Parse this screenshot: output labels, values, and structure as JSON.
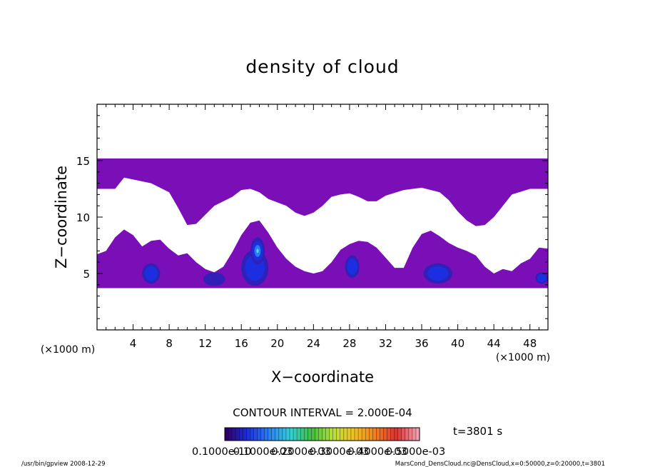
{
  "chart_data": {
    "type": "heatmap",
    "title": "density of cloud",
    "xlabel": "X−coordinate",
    "ylabel": "Z−coordinate",
    "x_unit": "(×1000 m)",
    "y_unit": "(×1000 m)",
    "xlim": [
      0,
      50
    ],
    "ylim": [
      0,
      20
    ],
    "x_ticks": [
      "4",
      "8",
      "12",
      "16",
      "20",
      "24",
      "28",
      "32",
      "36",
      "40",
      "44",
      "48"
    ],
    "y_ticks": [
      "5",
      "10",
      "15"
    ],
    "contour_interval": "CONTOUR INTERVAL = 2.000E-04",
    "time_label": "t=3801 s",
    "colorbar_labels": [
      "0.1000e-10",
      "0.1000e-03",
      "0.2000e-03",
      "0.3000e-03",
      "0.4000e-03",
      "0.5000e-03"
    ],
    "upper_cloud_layer": {
      "bottom_km": [
        [
          0,
          12.5
        ],
        [
          2,
          12.5
        ],
        [
          3,
          13.5
        ],
        [
          6,
          13.0
        ],
        [
          8,
          12.2
        ],
        [
          9,
          10.8
        ],
        [
          10,
          9.3
        ],
        [
          11,
          9.4
        ],
        [
          12,
          10.2
        ],
        [
          13,
          11.0
        ],
        [
          15,
          11.8
        ],
        [
          16,
          12.4
        ],
        [
          17,
          12.5
        ],
        [
          18,
          12.2
        ],
        [
          19,
          11.6
        ],
        [
          21,
          11.0
        ],
        [
          22,
          10.4
        ],
        [
          23,
          10.1
        ],
        [
          24,
          10.4
        ],
        [
          25,
          11.0
        ],
        [
          26,
          11.8
        ],
        [
          27,
          12.0
        ],
        [
          28,
          12.1
        ],
        [
          29,
          11.8
        ],
        [
          30,
          11.4
        ],
        [
          31,
          11.4
        ],
        [
          32,
          11.9
        ],
        [
          34,
          12.4
        ],
        [
          36,
          12.6
        ],
        [
          38,
          12.2
        ],
        [
          39,
          11.5
        ],
        [
          40,
          10.5
        ],
        [
          41,
          9.7
        ],
        [
          42,
          9.2
        ],
        [
          43,
          9.3
        ],
        [
          44,
          10.0
        ],
        [
          45,
          11.0
        ],
        [
          46,
          12.0
        ],
        [
          48,
          12.5
        ],
        [
          50,
          12.5
        ]
      ],
      "top_km": 15.2
    },
    "lower_cloud_layer": {
      "bottom_km": 3.7,
      "top_km": [
        [
          0,
          6.7
        ],
        [
          1,
          7.0
        ],
        [
          2,
          8.2
        ],
        [
          3,
          8.9
        ],
        [
          4,
          8.4
        ],
        [
          5,
          7.4
        ],
        [
          6,
          7.9
        ],
        [
          7,
          8.0
        ],
        [
          8,
          7.2
        ],
        [
          9,
          6.6
        ],
        [
          10,
          6.8
        ],
        [
          11,
          6.0
        ],
        [
          12,
          5.4
        ],
        [
          13,
          5.1
        ],
        [
          14,
          5.6
        ],
        [
          15,
          6.9
        ],
        [
          16,
          8.4
        ],
        [
          17,
          9.5
        ],
        [
          18,
          9.7
        ],
        [
          19,
          8.6
        ],
        [
          20,
          7.3
        ],
        [
          21,
          6.3
        ],
        [
          22,
          5.6
        ],
        [
          23,
          5.2
        ],
        [
          24,
          5.0
        ],
        [
          25,
          5.2
        ],
        [
          26,
          6.0
        ],
        [
          27,
          7.1
        ],
        [
          28,
          7.6
        ],
        [
          29,
          7.9
        ],
        [
          30,
          7.8
        ],
        [
          31,
          7.3
        ],
        [
          32,
          6.4
        ],
        [
          33,
          5.5
        ],
        [
          34,
          5.5
        ],
        [
          35,
          7.3
        ],
        [
          36,
          8.5
        ],
        [
          37,
          8.8
        ],
        [
          38,
          8.3
        ],
        [
          39,
          7.7
        ],
        [
          40,
          7.3
        ],
        [
          41,
          7.0
        ],
        [
          42,
          6.6
        ],
        [
          43,
          5.6
        ],
        [
          44,
          5.0
        ],
        [
          45,
          5.4
        ],
        [
          46,
          5.2
        ],
        [
          47,
          5.9
        ],
        [
          48,
          6.3
        ],
        [
          49,
          7.3
        ],
        [
          50,
          7.2
        ]
      ]
    },
    "dense_cores": [
      {
        "x": 6.0,
        "z": 5.0,
        "rx": 1.0,
        "rz": 0.9,
        "level": 1
      },
      {
        "x": 13.0,
        "z": 4.5,
        "rx": 1.2,
        "rz": 0.6,
        "level": 0
      },
      {
        "x": 17.5,
        "z": 5.5,
        "rx": 1.5,
        "rz": 1.6,
        "level": 1
      },
      {
        "x": 17.8,
        "z": 7.0,
        "rx": 0.8,
        "rz": 1.2,
        "level": 3
      },
      {
        "x": 28.3,
        "z": 5.6,
        "rx": 0.8,
        "rz": 1.0,
        "level": 1
      },
      {
        "x": 37.8,
        "z": 5.0,
        "rx": 1.6,
        "rz": 0.9,
        "level": 1
      },
      {
        "x": 49.3,
        "z": 4.6,
        "rx": 0.7,
        "rz": 0.5,
        "level": 1
      }
    ],
    "grid": false
  },
  "footer": {
    "program": "/usr/bin/gpview  2008-12-29",
    "source": "MarsCond_DensCloud.nc@DensCloud,x=0:50000,z=0:20000,t=3801"
  },
  "colors": {
    "base_cloud": "#7a0fb8",
    "levels": [
      "#3020b8",
      "#1c2fe0",
      "#2a7ff0",
      "#4fd7f0"
    ],
    "colorbar": [
      "#30006a",
      "#1c2fe0",
      "#2a7ff0",
      "#32d0d8",
      "#3fbf40",
      "#b8e040",
      "#f0c020",
      "#f08020",
      "#e03030",
      "#f0a0b0"
    ]
  }
}
